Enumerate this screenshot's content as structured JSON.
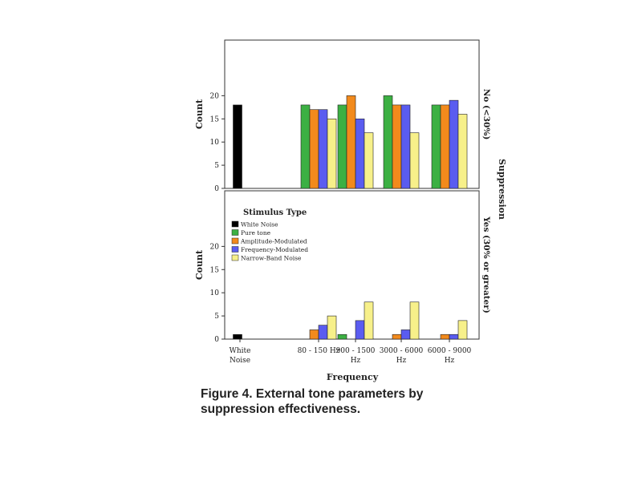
{
  "figure": {
    "caption": "Figure 4. External tone parameters by suppression effectiveness."
  },
  "chart_data": {
    "type": "bar",
    "xlabel": "Frequency",
    "ylabel": "Count",
    "facet_label": "Suppression",
    "categories": [
      "White Noise",
      "80 - 150 Hz",
      "900 - 1500 Hz",
      "3000 - 6000 Hz",
      "6000 - 9000 Hz"
    ],
    "category_lines": [
      [
        "White",
        "Noise"
      ],
      [
        "80 - 150 Hz",
        ""
      ],
      [
        "900 - 1500",
        "Hz"
      ],
      [
        "3000 - 6000",
        "Hz"
      ],
      [
        "6000 - 9000",
        "Hz"
      ]
    ],
    "ylim": [
      0,
      32
    ],
    "yticks": [
      0,
      5,
      10,
      15,
      20
    ],
    "ytick_labels": [
      "0",
      "5",
      "10",
      "15",
      "20"
    ],
    "legend": {
      "title": "Stimulus Type",
      "placement": "top-left of bottom panel"
    },
    "series": [
      {
        "name": "White Noise",
        "color": "#000000"
      },
      {
        "name": "Pure tone",
        "color": "#3cb043"
      },
      {
        "name": "Amplitude-Modulated",
        "color": "#f28a1c"
      },
      {
        "name": "Frequency-Modulated",
        "color": "#5a5cf0"
      },
      {
        "name": "Narrow-Band Noise",
        "color": "#f7f08a"
      }
    ],
    "panels": [
      {
        "label": "No (<30%)",
        "values": [
          [
            18,
            null,
            null,
            null,
            null
          ],
          [
            null,
            18,
            18,
            20,
            18
          ],
          [
            null,
            17,
            20,
            18,
            18
          ],
          [
            null,
            17,
            15,
            18,
            19
          ],
          [
            null,
            15,
            12,
            12,
            16
          ]
        ]
      },
      {
        "label": "Yes (30% or greater)",
        "values": [
          [
            1,
            null,
            null,
            null,
            null
          ],
          [
            null,
            0,
            1,
            0,
            0
          ],
          [
            null,
            2,
            0,
            1,
            1
          ],
          [
            null,
            3,
            4,
            2,
            1
          ],
          [
            null,
            5,
            8,
            8,
            4
          ]
        ]
      }
    ]
  }
}
